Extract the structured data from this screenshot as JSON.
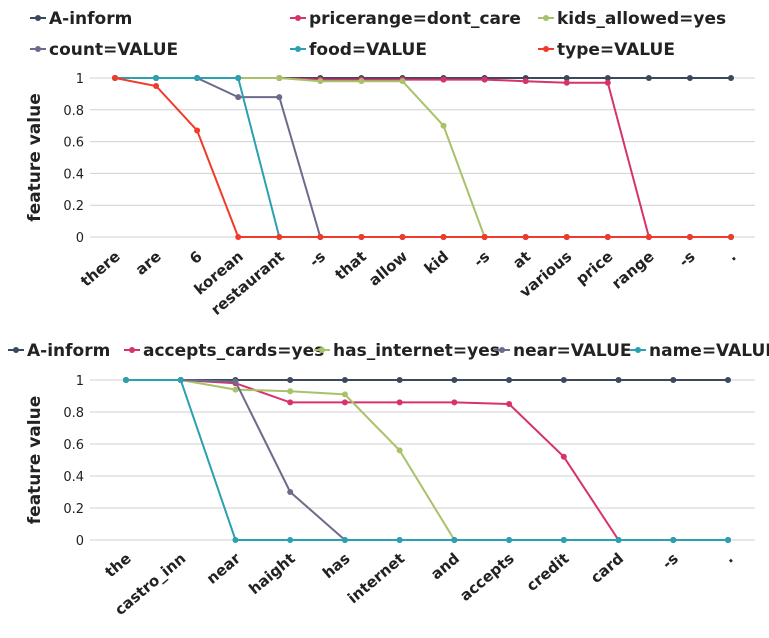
{
  "chart_data": [
    {
      "type": "line",
      "ylabel": "feature value",
      "ylim": [
        0,
        1
      ],
      "yticks": [
        "0",
        "0.2",
        "0.4",
        "0.6",
        "0.8",
        "1"
      ],
      "grid": true,
      "legend_position": "top",
      "categories": [
        "there",
        "are",
        "6",
        "korean",
        "restaurant",
        "-s",
        "that",
        "allow",
        "kid",
        "-s",
        "at",
        "various",
        "price",
        "range",
        "-s",
        "."
      ],
      "series": [
        {
          "name": "A-inform",
          "color": "#3a4a5c",
          "values": [
            1,
            1,
            1,
            1,
            1,
            1,
            1,
            1,
            1,
            1,
            1,
            1,
            1,
            1,
            1,
            1
          ]
        },
        {
          "name": "pricerange=dont_care",
          "color": "#d6336c",
          "values": [
            1,
            1,
            1,
            1,
            1,
            0.99,
            0.99,
            0.99,
            0.99,
            0.99,
            0.98,
            0.97,
            0.97,
            0,
            0,
            0
          ]
        },
        {
          "name": "kids_allowed=yes",
          "color": "#a8c26a",
          "values": [
            1,
            1,
            1,
            1,
            1,
            0.98,
            0.98,
            0.98,
            0.7,
            0,
            0,
            0,
            0,
            0,
            0,
            0
          ]
        },
        {
          "name": "count=VALUE",
          "color": "#6b6b8a",
          "values": [
            1,
            1,
            1,
            0.88,
            0.88,
            0,
            0,
            0,
            0,
            0,
            0,
            0,
            0,
            0,
            0,
            0
          ]
        },
        {
          "name": "food=VALUE",
          "color": "#2aa0b0",
          "values": [
            1,
            1,
            1,
            1,
            0,
            0,
            0,
            0,
            0,
            0,
            0,
            0,
            0,
            0,
            0,
            0
          ]
        },
        {
          "name": "type=VALUE",
          "color": "#f03a2a",
          "values": [
            1,
            0.95,
            0.67,
            0,
            0,
            0,
            0,
            0,
            0,
            0,
            0,
            0,
            0,
            0,
            0,
            0
          ]
        }
      ]
    },
    {
      "type": "line",
      "ylabel": "feature value",
      "ylim": [
        0,
        1
      ],
      "yticks": [
        "0",
        "0.2",
        "0.4",
        "0.6",
        "0.8",
        "1"
      ],
      "grid": true,
      "legend_position": "top",
      "categories": [
        "the",
        "castro_inn",
        "near",
        "haight",
        "has",
        "internet",
        "and",
        "accepts",
        "credit",
        "card",
        "-s",
        "."
      ],
      "series": [
        {
          "name": "A-inform",
          "color": "#3a4a5c",
          "values": [
            1,
            1,
            1,
            1,
            1,
            1,
            1,
            1,
            1,
            1,
            1,
            1
          ]
        },
        {
          "name": "accepts_cards=yes",
          "color": "#d6336c",
          "values": [
            1,
            1,
            0.98,
            0.86,
            0.86,
            0.86,
            0.86,
            0.85,
            0.52,
            0,
            0,
            0
          ]
        },
        {
          "name": "has_internet=yes",
          "color": "#a8c26a",
          "values": [
            1,
            1,
            0.94,
            0.93,
            0.91,
            0.56,
            0,
            0,
            0,
            0,
            0,
            0
          ]
        },
        {
          "name": "near=VALUE",
          "color": "#6b6b8a",
          "values": [
            1,
            1,
            0.99,
            0.3,
            0,
            0,
            0,
            0,
            0,
            0,
            0,
            0
          ]
        },
        {
          "name": "name=VALUE",
          "color": "#2aa0b0",
          "values": [
            1,
            1,
            0,
            0,
            0,
            0,
            0,
            0,
            0,
            0,
            0,
            0
          ]
        }
      ]
    }
  ]
}
